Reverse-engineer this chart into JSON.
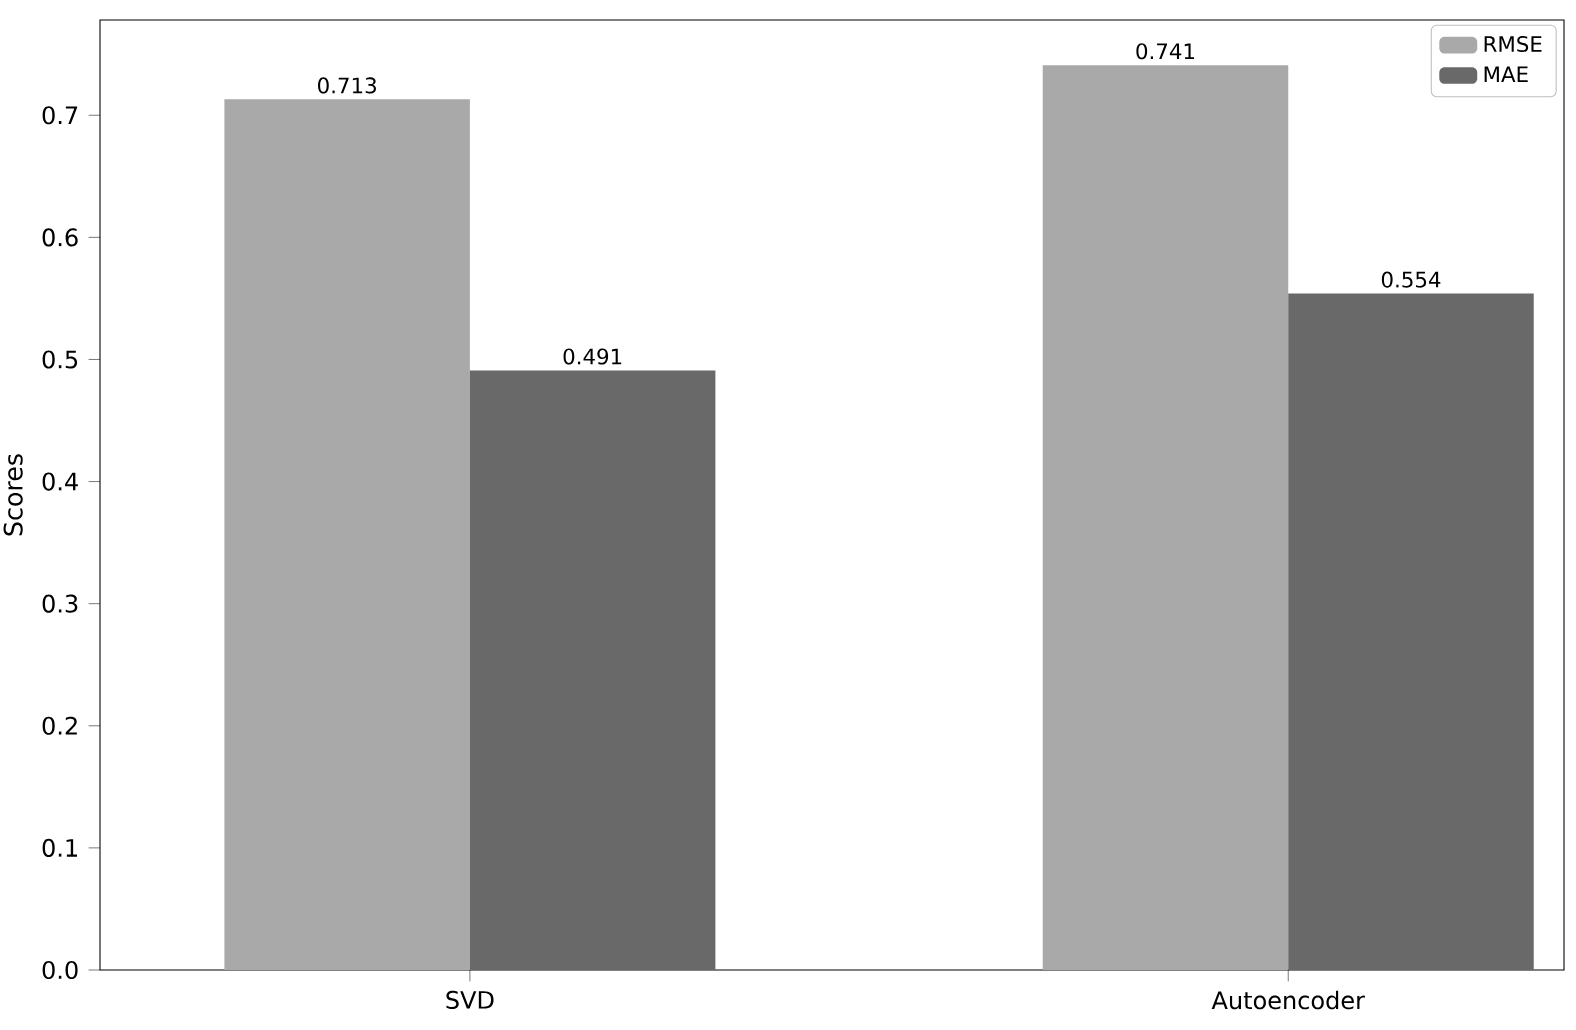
{
  "chart_data": {
    "type": "bar",
    "ylabel": "Scores",
    "categories": [
      "SVD",
      "Autoencoder"
    ],
    "series": [
      {
        "name": "RMSE",
        "color": "#a9a9a9",
        "values": [
          0.713,
          0.741
        ]
      },
      {
        "name": "MAE",
        "color": "#696969",
        "values": [
          0.491,
          0.554
        ]
      }
    ],
    "ylim": [
      0,
      0.778
    ],
    "yticks": [
      {
        "value": 0,
        "label": "0.0"
      },
      0.1,
      0.2,
      0.3,
      0.4,
      0.5,
      0.6,
      0.7
    ],
    "data_labels": true,
    "grid": false,
    "legend": "top right"
  }
}
